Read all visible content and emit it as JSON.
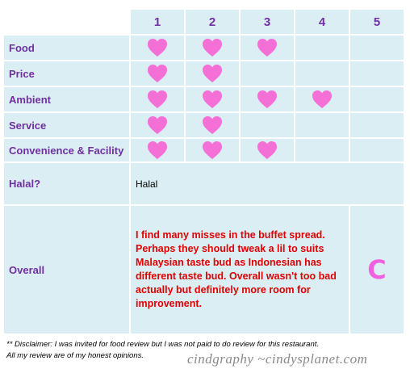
{
  "table": {
    "columns": [
      1,
      2,
      3,
      4,
      5
    ],
    "rows": [
      {
        "label": "Food",
        "rating": 3
      },
      {
        "label": "Price",
        "rating": 2
      },
      {
        "label": "Ambient",
        "rating": 4
      },
      {
        "label": "Service",
        "rating": 2
      },
      {
        "label": "Convenience & Facility",
        "rating": 3
      }
    ],
    "halal": {
      "label": "Halal?",
      "value": "Halal"
    },
    "overall": {
      "label": "Overall",
      "text": "I find many misses in the buffet spread. Perhaps they should tweak a lil to suits Malaysian taste bud as Indonesian has different taste bud. Overall wasn't too bad actually but definitely more room for improvement.",
      "grade": "C"
    }
  },
  "disclaimer": [
    "** Disclaimer: I was invited for food review but I was not paid to do review for this restaurant.",
    "All my review are of my honest opinions."
  ],
  "watermark": "cindgraphy ~cindysplanet.com"
}
